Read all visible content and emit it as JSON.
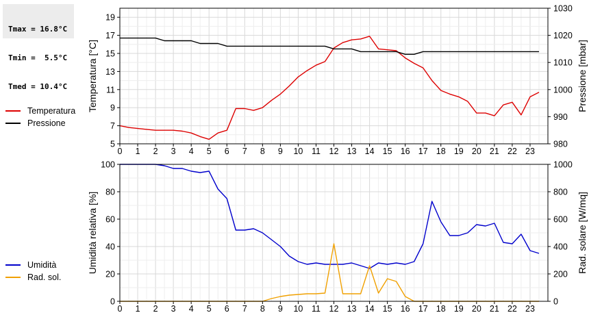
{
  "stats": {
    "lines": [
      "Tmax = 16.8°C",
      "Tmin =  5.5°C",
      "Tmed = 10.4°C"
    ]
  },
  "chart_data": [
    {
      "type": "line",
      "legend_position": "left",
      "grid": true,
      "xlim": [
        0,
        24
      ],
      "x_ticks": [
        "0",
        "1",
        "2",
        "3",
        "4",
        "5",
        "6",
        "7",
        "8",
        "9",
        "10",
        "11",
        "12",
        "13",
        "14",
        "15",
        "16",
        "17",
        "18",
        "19",
        "20",
        "21",
        "22",
        "23"
      ],
      "ylabel_left": "Temperatura [°C]",
      "ylabel_right": "Pressione [mbar]",
      "ylim_left": [
        5,
        20
      ],
      "ylim_right": [
        980,
        1030
      ],
      "y_ticks_left": [
        "5",
        "7",
        "9",
        "11",
        "13",
        "15",
        "17",
        "19"
      ],
      "y_ticks_right": [
        "980",
        "990",
        "1000",
        "1010",
        "1020",
        "1030"
      ],
      "series": [
        {
          "name": "Temperatura",
          "axis": "left",
          "color": "#dd0000",
          "x": [
            0,
            0.5,
            1,
            1.5,
            2,
            2.5,
            3,
            3.5,
            4,
            4.5,
            5,
            5.5,
            6,
            6.5,
            7,
            7.5,
            8,
            8.5,
            9,
            9.5,
            10,
            10.5,
            11,
            11.5,
            12,
            12.5,
            13,
            13.5,
            14,
            14.5,
            15,
            15.5,
            16,
            16.5,
            17,
            17.5,
            18,
            18.5,
            19,
            19.5,
            20,
            20.5,
            21,
            21.5,
            22,
            22.5,
            23,
            23.5
          ],
          "values": [
            7.0,
            6.8,
            6.7,
            6.6,
            6.5,
            6.5,
            6.5,
            6.4,
            6.2,
            5.8,
            5.5,
            6.2,
            6.5,
            8.9,
            8.9,
            8.7,
            9.0,
            9.8,
            10.5,
            11.4,
            12.4,
            13.1,
            13.7,
            14.1,
            15.6,
            16.2,
            16.5,
            16.6,
            16.9,
            15.5,
            15.4,
            15.3,
            14.5,
            13.9,
            13.4,
            12.0,
            10.9,
            10.5,
            10.2,
            9.7,
            8.4,
            8.4,
            8.1,
            9.3,
            9.6,
            8.2,
            10.2,
            10.7
          ]
        },
        {
          "name": "Pressione",
          "axis": "right",
          "color": "#000000",
          "x": [
            0,
            0.5,
            1,
            1.5,
            2,
            2.5,
            3,
            3.5,
            4,
            4.5,
            5,
            5.5,
            6,
            6.5,
            7,
            7.5,
            8,
            8.5,
            9,
            9.5,
            10,
            10.5,
            11,
            11.5,
            12,
            12.5,
            13,
            13.5,
            14,
            14.5,
            15,
            15.5,
            16,
            16.5,
            17,
            17.5,
            18,
            18.5,
            19,
            19.5,
            20,
            20.5,
            21,
            21.5,
            22,
            22.5,
            23,
            23.5
          ],
          "values": [
            1019,
            1019,
            1019,
            1019,
            1019,
            1018,
            1018,
            1018,
            1018,
            1017,
            1017,
            1017,
            1016,
            1016,
            1016,
            1016,
            1016,
            1016,
            1016,
            1016,
            1016,
            1016,
            1016,
            1016,
            1015,
            1015,
            1015,
            1014,
            1014,
            1014,
            1014,
            1014,
            1013,
            1013,
            1014,
            1014,
            1014,
            1014,
            1014,
            1014,
            1014,
            1014,
            1014,
            1014,
            1014,
            1014,
            1014,
            1014
          ]
        }
      ]
    },
    {
      "type": "line",
      "legend_position": "left",
      "grid": true,
      "xlim": [
        0,
        24
      ],
      "x_ticks": [
        "0",
        "1",
        "2",
        "3",
        "4",
        "5",
        "6",
        "7",
        "8",
        "9",
        "10",
        "11",
        "12",
        "13",
        "14",
        "15",
        "16",
        "17",
        "18",
        "19",
        "20",
        "21",
        "22",
        "23"
      ],
      "ylabel_left": "Umidità relativa [%]",
      "ylabel_right": "Rad. solare [W/mq]",
      "ylim_left": [
        0,
        100
      ],
      "ylim_right": [
        0,
        1000
      ],
      "y_ticks_left": [
        "0",
        "20",
        "40",
        "60",
        "80",
        "100"
      ],
      "y_ticks_right": [
        "0",
        "200",
        "400",
        "600",
        "800",
        "1000"
      ],
      "series": [
        {
          "name": "Umidità",
          "axis": "left",
          "color": "#0000cc",
          "x": [
            0,
            0.5,
            1,
            1.5,
            2,
            2.5,
            3,
            3.5,
            4,
            4.5,
            5,
            5.5,
            6,
            6.5,
            7,
            7.5,
            8,
            8.5,
            9,
            9.5,
            10,
            10.5,
            11,
            11.5,
            12,
            12.5,
            13,
            13.5,
            14,
            14.5,
            15,
            15.5,
            16,
            16.5,
            17,
            17.5,
            18,
            18.5,
            19,
            19.5,
            20,
            20.5,
            21,
            21.5,
            22,
            22.5,
            23,
            23.5
          ],
          "values": [
            100,
            100,
            100,
            100,
            100,
            99,
            97,
            97,
            95,
            94,
            95,
            82,
            75,
            52,
            52,
            53,
            50,
            45,
            40,
            33,
            29,
            27,
            28,
            27,
            27,
            27,
            28,
            26,
            24,
            28,
            27,
            28,
            27,
            29,
            42,
            73,
            58,
            48,
            48,
            50,
            56,
            55,
            57,
            43,
            42,
            49,
            37,
            35
          ]
        },
        {
          "name": "Rad. sol.",
          "axis": "right",
          "color": "#f0a000",
          "x": [
            0,
            0.5,
            1,
            1.5,
            2,
            2.5,
            3,
            3.5,
            4,
            4.5,
            5,
            5.5,
            6,
            6.5,
            7,
            7.5,
            8,
            8.5,
            9,
            9.5,
            10,
            10.5,
            11,
            11.5,
            12,
            12.5,
            13,
            13.5,
            14,
            14.5,
            15,
            15.5,
            16,
            16.5,
            17,
            17.5,
            18,
            18.5,
            19,
            19.5,
            20,
            20.5,
            21,
            21.5,
            22,
            22.5,
            23,
            23.5
          ],
          "values": [
            0,
            0,
            0,
            0,
            0,
            0,
            0,
            0,
            0,
            0,
            0,
            0,
            0,
            0,
            0,
            0,
            0,
            20,
            35,
            45,
            50,
            55,
            55,
            60,
            420,
            55,
            55,
            55,
            260,
            60,
            165,
            145,
            35,
            0,
            0,
            0,
            0,
            0,
            0,
            0,
            0,
            0,
            0,
            0,
            0,
            0,
            0,
            0
          ]
        }
      ]
    }
  ]
}
